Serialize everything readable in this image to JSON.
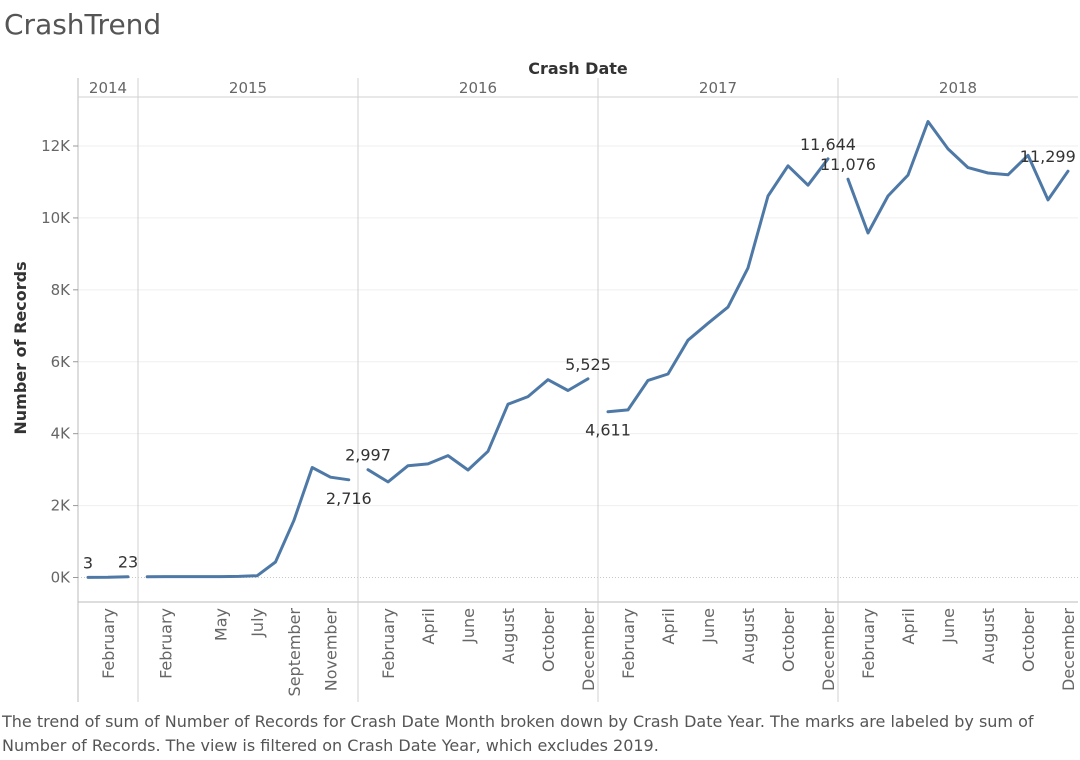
{
  "title": "CrashTrend",
  "caption": "The trend of sum of Number of Records for Crash Date Month broken down by Crash Date Year.  The marks are labeled by sum of Number of Records. The view is filtered on Crash Date Year, which excludes 2019.",
  "chart_data": {
    "type": "line",
    "title": "CrashTrend",
    "xlabel": "Crash Date",
    "ylabel": "Number of Records",
    "ylim": [
      -700,
      13100
    ],
    "yticks": [
      0,
      2000,
      4000,
      6000,
      8000,
      10000,
      12000
    ],
    "ytick_labels": [
      "0K",
      "2K",
      "4K",
      "6K",
      "8K",
      "10K",
      "12K"
    ],
    "gridlines": true,
    "line_color": "#4e79a7",
    "years": [
      {
        "year": "2014",
        "months": [
          "Jan",
          "Feb",
          "Mar"
        ],
        "values": [
          3,
          5,
          23
        ],
        "tick_labels": [
          {
            "month": "Feb",
            "label": "February"
          }
        ]
      },
      {
        "year": "2015",
        "months": [
          "Jan",
          "Feb",
          "Mar",
          "Apr",
          "May",
          "Jun",
          "Jul",
          "Aug",
          "Sep",
          "Oct",
          "Nov",
          "Dec"
        ],
        "values": [
          20,
          25,
          25,
          25,
          25,
          30,
          50,
          430,
          1580,
          3060,
          2790,
          2716
        ],
        "tick_labels": [
          {
            "month": "Feb",
            "label": "February"
          },
          {
            "month": "May",
            "label": "May"
          },
          {
            "month": "Jul",
            "label": "July"
          },
          {
            "month": "Sep",
            "label": "September"
          },
          {
            "month": "Nov",
            "label": "November"
          }
        ]
      },
      {
        "year": "2016",
        "months": [
          "Jan",
          "Feb",
          "Mar",
          "Apr",
          "May",
          "Jun",
          "Jul",
          "Aug",
          "Sep",
          "Oct",
          "Nov",
          "Dec"
        ],
        "values": [
          2997,
          2660,
          3110,
          3160,
          3390,
          2990,
          3510,
          4820,
          5030,
          5500,
          5200,
          5525
        ],
        "tick_labels": [
          {
            "month": "Feb",
            "label": "February"
          },
          {
            "month": "Apr",
            "label": "April"
          },
          {
            "month": "Jun",
            "label": "June"
          },
          {
            "month": "Aug",
            "label": "August"
          },
          {
            "month": "Oct",
            "label": "October"
          },
          {
            "month": "Dec",
            "label": "December"
          }
        ]
      },
      {
        "year": "2017",
        "months": [
          "Jan",
          "Feb",
          "Mar",
          "Apr",
          "May",
          "Jun",
          "Jul",
          "Aug",
          "Sep",
          "Oct",
          "Nov",
          "Dec"
        ],
        "values": [
          4611,
          4660,
          5480,
          5660,
          6600,
          7070,
          7520,
          8610,
          10610,
          11450,
          10910,
          11644
        ],
        "tick_labels": [
          {
            "month": "Feb",
            "label": "February"
          },
          {
            "month": "Apr",
            "label": "April"
          },
          {
            "month": "Jun",
            "label": "June"
          },
          {
            "month": "Aug",
            "label": "August"
          },
          {
            "month": "Oct",
            "label": "October"
          },
          {
            "month": "Dec",
            "label": "December"
          }
        ]
      },
      {
        "year": "2018",
        "months": [
          "Jan",
          "Feb",
          "Mar",
          "Apr",
          "May",
          "Jun",
          "Jul",
          "Aug",
          "Sep",
          "Oct",
          "Nov",
          "Dec"
        ],
        "values": [
          11076,
          9580,
          10610,
          11190,
          12680,
          11920,
          11400,
          11250,
          11200,
          11740,
          10500,
          11299
        ],
        "tick_labels": [
          {
            "month": "Feb",
            "label": "February"
          },
          {
            "month": "Apr",
            "label": "April"
          },
          {
            "month": "Jun",
            "label": "June"
          },
          {
            "month": "Aug",
            "label": "August"
          },
          {
            "month": "Oct",
            "label": "October"
          },
          {
            "month": "Dec",
            "label": "December"
          }
        ]
      }
    ],
    "data_labels": [
      {
        "year": "2014",
        "month": "Jan",
        "text": "3",
        "position": "above"
      },
      {
        "year": "2014",
        "month": "Mar",
        "text": "23",
        "position": "above"
      },
      {
        "year": "2015",
        "month": "Dec",
        "text": "2,716",
        "position": "below"
      },
      {
        "year": "2016",
        "month": "Jan",
        "text": "2,997",
        "position": "above"
      },
      {
        "year": "2016",
        "month": "Dec",
        "text": "5,525",
        "position": "above"
      },
      {
        "year": "2017",
        "month": "Jan",
        "text": "4,611",
        "position": "below"
      },
      {
        "year": "2017",
        "month": "Dec",
        "text": "11,644",
        "position": "above"
      },
      {
        "year": "2018",
        "month": "Jan",
        "text": "11,076",
        "position": "above"
      },
      {
        "year": "2018",
        "month": "Dec",
        "text": "11,299",
        "position": "above"
      }
    ]
  }
}
